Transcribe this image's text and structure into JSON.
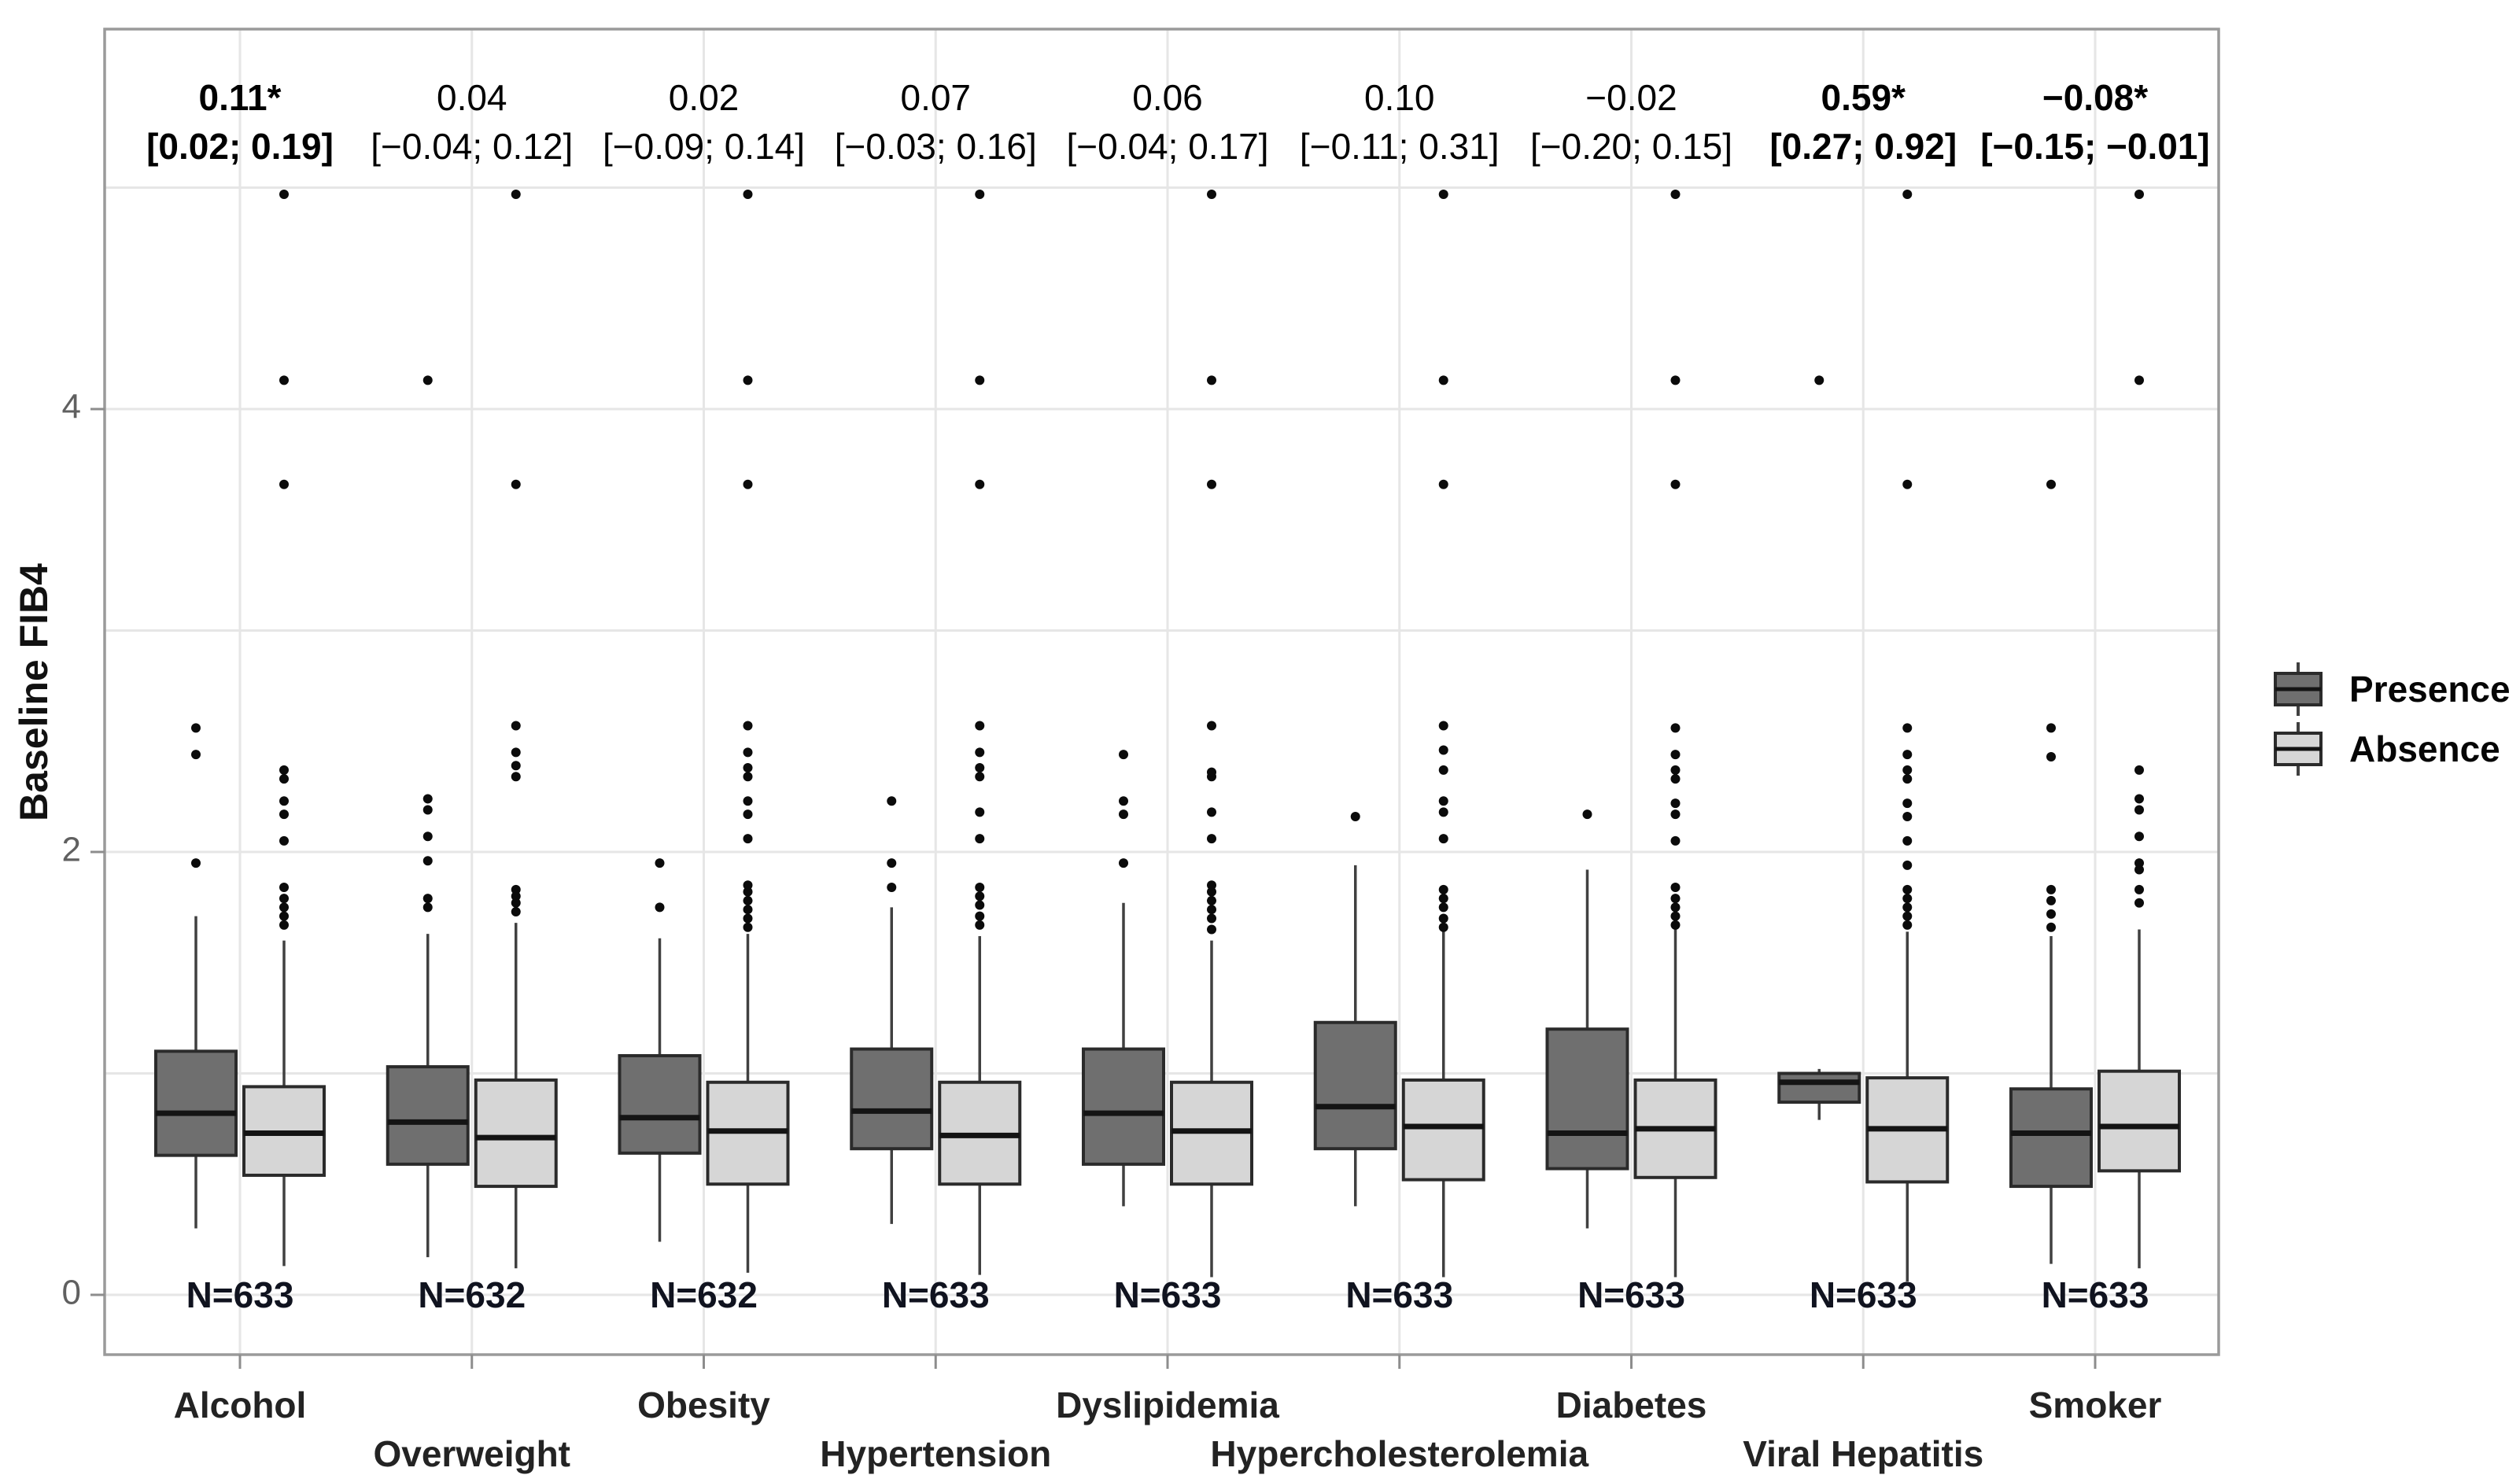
{
  "figure": {
    "background": "#ffffff"
  },
  "colors": {
    "presence_fill": "#6f6f6f",
    "absence_fill": "#d6d6d6",
    "box_border": "#2b2b2b",
    "median_line": "#141414",
    "whisker": "#404040",
    "outlier": "#0b0b0b",
    "gridline": "#e6e6e6",
    "panel_border": "#9a9a9a",
    "tick_mark": "#8d8d8d",
    "y_tick_text": "#606060",
    "category_text": "#232323",
    "n_text": "#10131f",
    "annotation_text": "#000000"
  },
  "y_axis": {
    "label": "Baseline FIB4",
    "tick_labels": [
      "0",
      "2",
      "4"
    ]
  },
  "legend": {
    "items": [
      {
        "label": "Presence",
        "fill": "#6f6f6f"
      },
      {
        "label": "Absence",
        "fill": "#d6d6d6"
      }
    ]
  },
  "chart_data": {
    "type": "boxplot-grouped",
    "title": "",
    "xlabel": "",
    "ylabel": "Baseline FIB4",
    "ylim": [
      -0.27,
      5.74
    ],
    "y_major_ticks": [
      0,
      2,
      4
    ],
    "y_gridlines": [
      0,
      1,
      2,
      3,
      4,
      5
    ],
    "grid": true,
    "legend_position": "right",
    "series_names": [
      "Presence",
      "Absence"
    ],
    "categories": [
      {
        "label": "Alcohol",
        "label_row": 1,
        "n_label": "N=633",
        "estimate": "0.11*",
        "ci": "[0.02; 0.19]",
        "significant": true,
        "presence": {
          "whisker_low": 0.3,
          "q1": 0.63,
          "median": 0.82,
          "q3": 1.1,
          "whisker_high": 1.71,
          "outliers": [
            1.95,
            2.44,
            2.56
          ]
        },
        "absence": {
          "whisker_low": 0.13,
          "q1": 0.54,
          "median": 0.73,
          "q3": 0.94,
          "whisker_high": 1.6,
          "outliers": [
            1.67,
            1.71,
            1.75,
            1.79,
            1.84,
            2.05,
            2.17,
            2.23,
            2.33,
            2.37,
            3.66,
            4.13,
            4.97
          ]
        }
      },
      {
        "label": "Overweight",
        "label_row": 2,
        "n_label": "N=632",
        "estimate": "0.04",
        "ci": "[−0.04; 0.12]",
        "significant": false,
        "presence": {
          "whisker_low": 0.17,
          "q1": 0.59,
          "median": 0.78,
          "q3": 1.03,
          "whisker_high": 1.63,
          "outliers": [
            1.75,
            1.79,
            1.96,
            2.07,
            2.19,
            2.24,
            4.13
          ]
        },
        "absence": {
          "whisker_low": 0.12,
          "q1": 0.49,
          "median": 0.71,
          "q3": 0.97,
          "whisker_high": 1.68,
          "outliers": [
            1.73,
            1.77,
            1.8,
            1.83,
            2.34,
            2.39,
            2.45,
            2.57,
            3.66,
            4.97
          ]
        }
      },
      {
        "label": "Obesity",
        "label_row": 1,
        "n_label": "N=632",
        "estimate": "0.02",
        "ci": "[−0.09; 0.14]",
        "significant": false,
        "presence": {
          "whisker_low": 0.24,
          "q1": 0.64,
          "median": 0.8,
          "q3": 1.08,
          "whisker_high": 1.61,
          "outliers": [
            1.75,
            1.95
          ]
        },
        "absence": {
          "whisker_low": 0.1,
          "q1": 0.5,
          "median": 0.74,
          "q3": 0.96,
          "whisker_high": 1.63,
          "outliers": [
            1.66,
            1.7,
            1.74,
            1.78,
            1.82,
            1.85,
            2.06,
            2.17,
            2.23,
            2.34,
            2.38,
            2.45,
            2.57,
            3.66,
            4.13,
            4.97
          ]
        }
      },
      {
        "label": "Hypertension",
        "label_row": 2,
        "n_label": "N=633",
        "estimate": "0.07",
        "ci": "[−0.03; 0.16]",
        "significant": false,
        "presence": {
          "whisker_low": 0.32,
          "q1": 0.66,
          "median": 0.83,
          "q3": 1.11,
          "whisker_high": 1.75,
          "outliers": [
            1.84,
            1.95,
            2.23
          ]
        },
        "absence": {
          "whisker_low": 0.09,
          "q1": 0.5,
          "median": 0.72,
          "q3": 0.96,
          "whisker_high": 1.62,
          "outliers": [
            1.67,
            1.71,
            1.76,
            1.8,
            1.84,
            2.06,
            2.18,
            2.34,
            2.38,
            2.45,
            2.57,
            3.66,
            4.13,
            4.97
          ]
        }
      },
      {
        "label": "Dyslipidemia",
        "label_row": 1,
        "n_label": "N=633",
        "estimate": "0.06",
        "ci": "[−0.04; 0.17]",
        "significant": false,
        "presence": {
          "whisker_low": 0.4,
          "q1": 0.59,
          "median": 0.82,
          "q3": 1.11,
          "whisker_high": 1.77,
          "outliers": [
            1.95,
            2.17,
            2.23,
            2.44
          ]
        },
        "absence": {
          "whisker_low": 0.08,
          "q1": 0.5,
          "median": 0.74,
          "q3": 0.96,
          "whisker_high": 1.6,
          "outliers": [
            1.65,
            1.7,
            1.74,
            1.78,
            1.82,
            1.85,
            2.06,
            2.18,
            2.34,
            2.36,
            2.57,
            3.66,
            4.13,
            4.97
          ]
        }
      },
      {
        "label": "Hypercholesterolemia",
        "label_row": 2,
        "n_label": "N=633",
        "estimate": "0.10",
        "ci": "[−0.11; 0.31]",
        "significant": false,
        "presence": {
          "whisker_low": 0.4,
          "q1": 0.66,
          "median": 0.85,
          "q3": 1.23,
          "whisker_high": 1.94,
          "outliers": [
            2.16
          ]
        },
        "absence": {
          "whisker_low": 0.08,
          "q1": 0.52,
          "median": 0.76,
          "q3": 0.97,
          "whisker_high": 1.64,
          "outliers": [
            1.66,
            1.7,
            1.75,
            1.79,
            1.83,
            2.06,
            2.18,
            2.23,
            2.37,
            2.46,
            2.57,
            3.66,
            4.13,
            4.97
          ]
        }
      },
      {
        "label": "Diabetes",
        "label_row": 1,
        "n_label": "N=633",
        "estimate": "−0.02",
        "ci": "[−0.20; 0.15]",
        "significant": false,
        "presence": {
          "whisker_low": 0.3,
          "q1": 0.57,
          "median": 0.73,
          "q3": 1.2,
          "whisker_high": 1.92,
          "outliers": [
            2.17
          ]
        },
        "absence": {
          "whisker_low": 0.08,
          "q1": 0.53,
          "median": 0.75,
          "q3": 0.97,
          "whisker_high": 1.66,
          "outliers": [
            1.67,
            1.71,
            1.75,
            1.79,
            1.84,
            2.05,
            2.17,
            2.22,
            2.33,
            2.37,
            2.44,
            2.56,
            3.66,
            4.13,
            4.97
          ]
        }
      },
      {
        "label": "Viral Hepatitis",
        "label_row": 2,
        "n_label": "N=633",
        "estimate": "0.59*",
        "ci": "[0.27; 0.92]",
        "significant": true,
        "presence": {
          "whisker_low": 0.79,
          "q1": 0.87,
          "median": 0.96,
          "q3": 1.0,
          "whisker_high": 1.02,
          "outliers": [
            4.13
          ]
        },
        "absence": {
          "whisker_low": 0.06,
          "q1": 0.51,
          "median": 0.75,
          "q3": 0.98,
          "whisker_high": 1.64,
          "outliers": [
            1.67,
            1.71,
            1.75,
            1.79,
            1.83,
            1.94,
            2.05,
            2.16,
            2.22,
            2.33,
            2.37,
            2.44,
            2.56,
            3.66,
            4.97
          ]
        }
      },
      {
        "label": "Smoker",
        "label_row": 1,
        "n_label": "N=633",
        "estimate": "−0.08*",
        "ci": "[−0.15; −0.01]",
        "significant": true,
        "presence": {
          "whisker_low": 0.14,
          "q1": 0.49,
          "median": 0.73,
          "q3": 0.93,
          "whisker_high": 1.62,
          "outliers": [
            1.66,
            1.72,
            1.78,
            1.83,
            2.43,
            2.56,
            3.66
          ]
        },
        "absence": {
          "whisker_low": 0.12,
          "q1": 0.56,
          "median": 0.76,
          "q3": 1.01,
          "whisker_high": 1.65,
          "outliers": [
            1.77,
            1.83,
            1.92,
            1.95,
            2.07,
            2.19,
            2.24,
            2.37,
            4.13,
            4.97
          ]
        }
      }
    ]
  }
}
